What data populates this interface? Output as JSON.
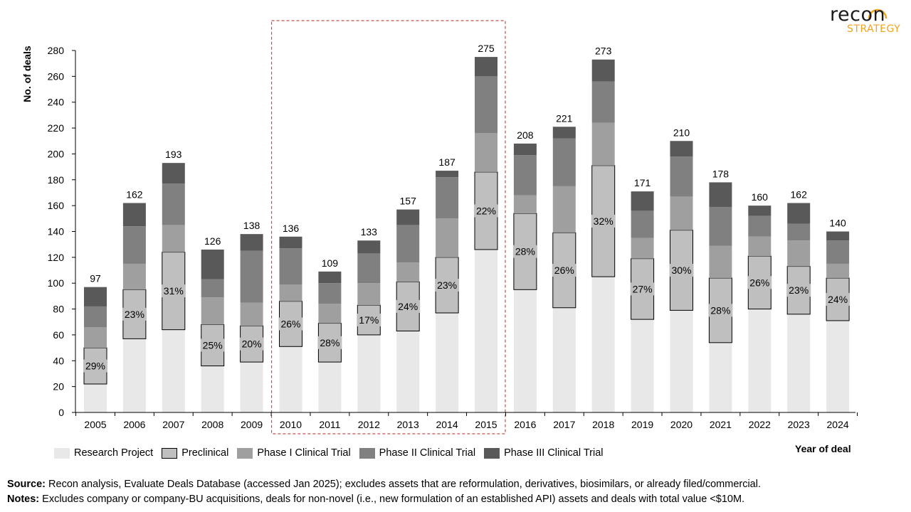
{
  "brand": {
    "logo_top": "recon",
    "logo_bottom": "STRATEGY",
    "accent_color": "#f5a21c"
  },
  "chart_data": {
    "type": "bar",
    "stacked": true,
    "xlabel": "Year of deal",
    "ylabel": "No. of deals",
    "ylim": [
      0,
      280
    ],
    "yticks": [
      0,
      20,
      40,
      60,
      80,
      100,
      120,
      140,
      160,
      180,
      200,
      220,
      240,
      260,
      280
    ],
    "grid": false,
    "legend_position": "bottom-left",
    "categories": [
      "2005",
      "2006",
      "2007",
      "2008",
      "2009",
      "2010",
      "2011",
      "2012",
      "2013",
      "2014",
      "2015",
      "2016",
      "2017",
      "2018",
      "2019",
      "2020",
      "2021",
      "2022",
      "2023",
      "2024"
    ],
    "series": [
      {
        "name": "Research Project",
        "color": "#e8e8e8",
        "values": [
          22,
          57,
          64,
          36,
          39,
          51,
          39,
          60,
          63,
          77,
          126,
          95,
          81,
          105,
          72,
          79,
          54,
          80,
          76,
          71
        ]
      },
      {
        "name": "Preclinical",
        "color": "#bfbfbf",
        "outlined": true,
        "values": [
          28,
          38,
          60,
          32,
          28,
          35,
          30,
          23,
          38,
          43,
          60,
          59,
          58,
          86,
          47,
          62,
          50,
          41,
          37,
          33
        ]
      },
      {
        "name": "Phase I Clinical Trial",
        "color": "#9f9f9f",
        "values": [
          16,
          20,
          21,
          21,
          18,
          13,
          15,
          17,
          15,
          30,
          30,
          14,
          36,
          33,
          16,
          26,
          25,
          15,
          20,
          11
        ]
      },
      {
        "name": "Phase II Clinical Trial",
        "color": "#808080",
        "values": [
          16,
          29,
          32,
          14,
          40,
          28,
          16,
          23,
          29,
          32,
          44,
          31,
          37,
          32,
          21,
          31,
          30,
          16,
          13,
          18
        ]
      },
      {
        "name": "Phase III Clinical Trial",
        "color": "#595959",
        "values": [
          15,
          18,
          16,
          23,
          13,
          9,
          9,
          10,
          12,
          5,
          15,
          9,
          9,
          17,
          15,
          12,
          19,
          8,
          16,
          7
        ]
      }
    ],
    "totals": [
      97,
      162,
      193,
      126,
      138,
      136,
      109,
      133,
      157,
      187,
      275,
      208,
      221,
      273,
      171,
      210,
      178,
      160,
      162,
      140
    ],
    "preclinical_share_labels": [
      "29%",
      "23%",
      "31%",
      "25%",
      "20%",
      "26%",
      "28%",
      "17%",
      "24%",
      "23%",
      "22%",
      "28%",
      "26%",
      "32%",
      "27%",
      "30%",
      "28%",
      "26%",
      "23%",
      "24%"
    ],
    "highlight": {
      "from": "2010",
      "to": "2015",
      "style": "dashed",
      "color": "#c0504d"
    }
  },
  "footnotes": {
    "source_label": "Source:",
    "source_text": " Recon analysis, Evaluate Deals Database (accessed Jan 2025); excludes assets that are reformulation, derivatives, biosimilars, or already filed/commercial.",
    "notes_label": "Notes:",
    "notes_text": " Excludes company or company-BU acquisitions, deals for non-novel (i.e., new formulation of an established API) assets and deals with total value <$10M."
  }
}
